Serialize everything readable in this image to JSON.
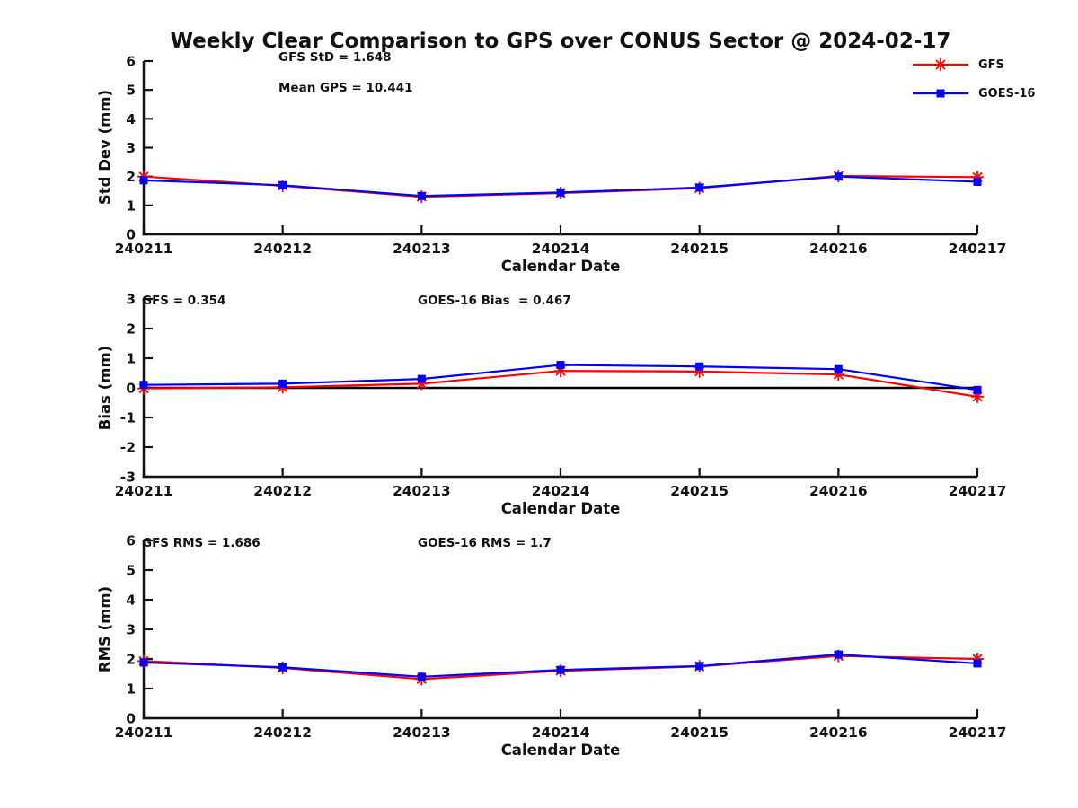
{
  "figure": {
    "title": "Weekly Clear Comparison to GPS over CONUS Sector @ 2024-02-17"
  },
  "legend": {
    "position": "outside-top-right",
    "items": [
      {
        "label": "GFS",
        "color": "#ff0000",
        "marker": "asterisk"
      },
      {
        "label": "GOES-16",
        "color": "#0000ff",
        "marker": "square"
      }
    ]
  },
  "colors": {
    "gfs": "#ff0000",
    "goes16": "#0000ff",
    "axis": "#111111",
    "zero_line": "#000000"
  },
  "chart_data": [
    {
      "type": "line",
      "ylabel": "Std Dev (mm)",
      "xlabel": "Calendar Date",
      "ylim": [
        0,
        6
      ],
      "yticks": [
        0,
        1,
        2,
        3,
        4,
        5,
        6
      ],
      "grid": false,
      "zero_line": false,
      "categories": [
        "240211",
        "240212",
        "240213",
        "240214",
        "240215",
        "240216",
        "240217"
      ],
      "annotations": [
        {
          "text": "GFS StD = 1.648"
        },
        {
          "text": "Mean GPS = 10.441"
        }
      ],
      "series": [
        {
          "name": "GFS",
          "color": "#ff0000",
          "marker": "asterisk",
          "values": [
            2.0,
            1.68,
            1.3,
            1.43,
            1.6,
            2.02,
            1.98
          ]
        },
        {
          "name": "GOES-16",
          "color": "#0000ff",
          "marker": "square",
          "values": [
            1.87,
            1.7,
            1.33,
            1.45,
            1.62,
            2.0,
            1.82
          ]
        }
      ]
    },
    {
      "type": "line",
      "ylabel": "Bias (mm)",
      "xlabel": "Calendar Date",
      "ylim": [
        -3,
        3
      ],
      "yticks": [
        -3,
        -2,
        -1,
        0,
        1,
        2,
        3
      ],
      "grid": false,
      "zero_line": true,
      "categories": [
        "240211",
        "240212",
        "240213",
        "240214",
        "240215",
        "240216",
        "240217"
      ],
      "annotations": [
        {
          "text": "GFS = 0.354"
        },
        {
          "text": "GOES-16 Bias  = 0.467"
        }
      ],
      "series": [
        {
          "name": "GFS",
          "color": "#ff0000",
          "marker": "asterisk",
          "values": [
            -0.02,
            0.02,
            0.14,
            0.57,
            0.55,
            0.45,
            -0.3
          ]
        },
        {
          "name": "GOES-16",
          "color": "#0000ff",
          "marker": "square",
          "values": [
            0.1,
            0.14,
            0.3,
            0.77,
            0.72,
            0.63,
            -0.07
          ]
        }
      ]
    },
    {
      "type": "line",
      "ylabel": "RMS (mm)",
      "xlabel": "Calendar Date",
      "ylim": [
        0,
        6
      ],
      "yticks": [
        0,
        1,
        2,
        3,
        4,
        5,
        6
      ],
      "grid": false,
      "zero_line": false,
      "categories": [
        "240211",
        "240212",
        "240213",
        "240214",
        "240215",
        "240216",
        "240217"
      ],
      "annotations": [
        {
          "text": "GFS RMS = 1.686"
        },
        {
          "text": "GOES-16 RMS = 1.7"
        }
      ],
      "series": [
        {
          "name": "GFS",
          "color": "#ff0000",
          "marker": "asterisk",
          "values": [
            1.93,
            1.7,
            1.32,
            1.6,
            1.75,
            2.1,
            2.0
          ]
        },
        {
          "name": "GOES-16",
          "color": "#0000ff",
          "marker": "square",
          "values": [
            1.88,
            1.72,
            1.4,
            1.63,
            1.76,
            2.15,
            1.85
          ]
        }
      ]
    }
  ]
}
